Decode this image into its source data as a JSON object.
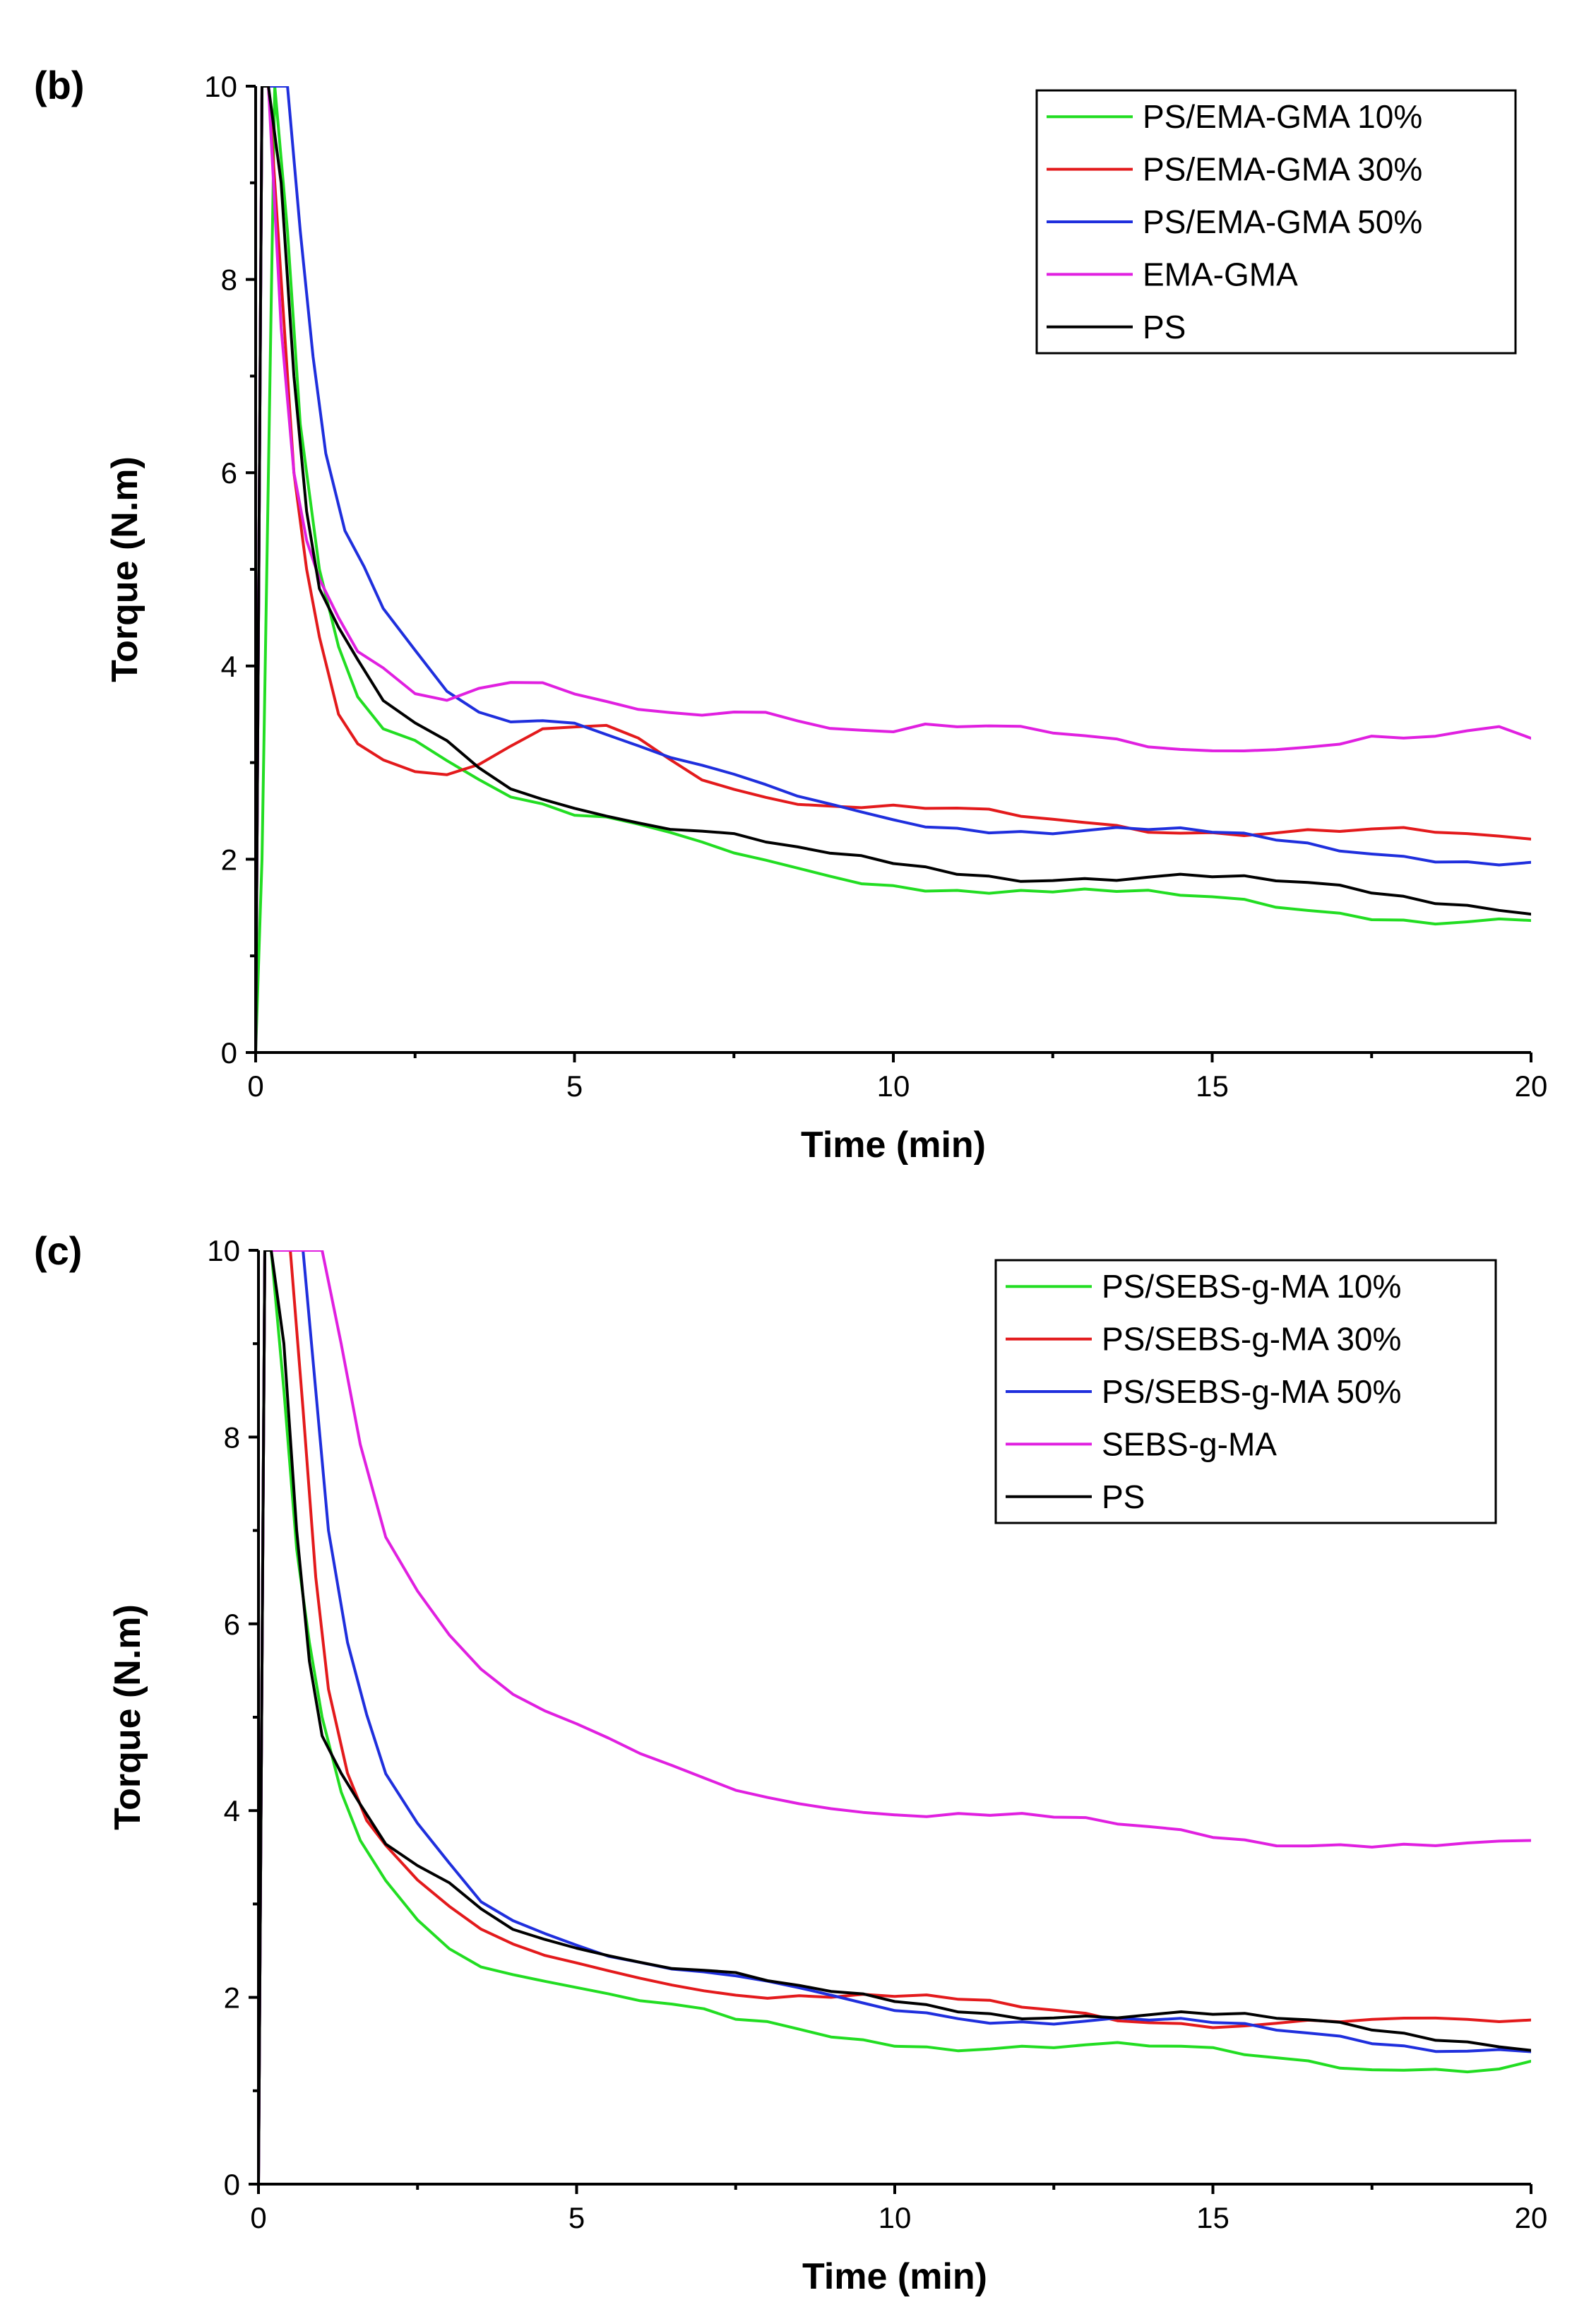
{
  "chart_data": [
    {
      "panel_label": "(b)",
      "type": "line",
      "xlabel": "Time (min)",
      "ylabel": "Torque (N.m)",
      "xlim": [
        0,
        20
      ],
      "ylim": [
        0,
        10
      ],
      "xticks": [
        "0",
        "5",
        "10",
        "15",
        "20"
      ],
      "yticks": [
        "0",
        "2",
        "4",
        "6",
        "8",
        "10"
      ],
      "legend_position": "top-right",
      "series": [
        {
          "name": "PS/EMA-GMA 10%",
          "color": "#22dd22",
          "x": [
            0,
            0.1,
            0.2,
            0.3,
            0.5,
            0.7,
            1,
            1.3,
            1.6,
            2,
            2.5,
            3,
            3.5,
            4,
            4.5,
            5,
            5.5,
            6,
            6.5,
            7,
            7.5,
            8,
            8.5,
            9,
            9.5,
            10,
            10.5,
            11,
            11.5,
            12,
            12.5,
            13,
            13.5,
            14,
            14.5,
            15,
            15.5,
            16,
            16.5,
            17,
            17.5,
            18,
            18.5,
            19,
            19.5,
            20
          ],
          "y": [
            0,
            2,
            6,
            10,
            8.5,
            6.5,
            5,
            4.2,
            3.7,
            3.4,
            3.3,
            3.1,
            2.9,
            2.7,
            2.6,
            2.45,
            2.4,
            2.3,
            2.2,
            2.1,
            2,
            1.95,
            1.9,
            1.85,
            1.8,
            1.8,
            1.75,
            1.75,
            1.7,
            1.7,
            1.65,
            1.65,
            1.6,
            1.6,
            1.55,
            1.55,
            1.55,
            1.5,
            1.5,
            1.5,
            1.45,
            1.45,
            1.4,
            1.4,
            1.4,
            1.35
          ]
        },
        {
          "name": "PS/EMA-GMA 30%",
          "color": "#e31a1c",
          "x": [
            0,
            0.1,
            0.2,
            0.4,
            0.6,
            0.8,
            1,
            1.3,
            1.6,
            2,
            2.5,
            3,
            3.5,
            4,
            4.5,
            5,
            5.5,
            6,
            6.5,
            7,
            7.5,
            8,
            8.5,
            9,
            9.5,
            10,
            10.5,
            11,
            11.5,
            12,
            12.5,
            13,
            13.5,
            14,
            14.5,
            15,
            15.5,
            16,
            16.5,
            17,
            17.5,
            18,
            18.5,
            19,
            19.5,
            20
          ],
          "y": [
            0,
            10,
            10,
            8,
            6,
            5,
            4.3,
            3.5,
            3.2,
            3,
            2.85,
            2.8,
            2.9,
            3.1,
            3.3,
            3.35,
            3.4,
            3.3,
            3.1,
            2.9,
            2.8,
            2.7,
            2.6,
            2.55,
            2.5,
            2.5,
            2.45,
            2.45,
            2.45,
            2.4,
            2.4,
            2.4,
            2.4,
            2.35,
            2.35,
            2.35,
            2.3,
            2.3,
            2.3,
            2.25,
            2.25,
            2.25,
            2.2,
            2.2,
            2.2,
            2.2
          ]
        },
        {
          "name": "PS/EMA-GMA 50%",
          "color": "#1f2fdd",
          "x": [
            0,
            0.1,
            0.3,
            0.5,
            0.7,
            0.9,
            1.1,
            1.4,
            1.7,
            2,
            2.5,
            3,
            3.5,
            4,
            4.5,
            5,
            5.5,
            6,
            6.5,
            7,
            7.5,
            8,
            8.5,
            9,
            9.5,
            10,
            10.5,
            11,
            11.5,
            12,
            12.5,
            13,
            13.5,
            14,
            14.5,
            15,
            15.5,
            16,
            16.5,
            17,
            17.5,
            18,
            18.5,
            19,
            19.5,
            20
          ],
          "y": [
            0,
            10,
            10,
            10,
            8.5,
            7.2,
            6.2,
            5.4,
            5,
            4.6,
            4.2,
            3.8,
            3.6,
            3.5,
            3.5,
            3.45,
            3.3,
            3.15,
            3,
            2.9,
            2.8,
            2.7,
            2.6,
            2.55,
            2.5,
            2.45,
            2.4,
            2.4,
            2.35,
            2.35,
            2.3,
            2.3,
            2.3,
            2.25,
            2.25,
            2.2,
            2.2,
            2.15,
            2.15,
            2.1,
            2.1,
            2.1,
            2.05,
            2.05,
            2,
            2
          ]
        },
        {
          "name": "EMA-GMA",
          "color": "#e020e0",
          "x": [
            0,
            0.1,
            0.2,
            0.4,
            0.6,
            0.8,
            1,
            1.3,
            1.6,
            2,
            2.5,
            3,
            3.5,
            4,
            4.5,
            5,
            5.5,
            6,
            6.5,
            7,
            7.5,
            8,
            8.5,
            9,
            9.5,
            10,
            10.5,
            11,
            11.5,
            12,
            12.5,
            13,
            13.5,
            14,
            14.5,
            15,
            15.5,
            16,
            16.5,
            17,
            17.5,
            18,
            18.5,
            19,
            19.5,
            20
          ],
          "y": [
            0,
            10,
            10,
            7.5,
            6,
            5.3,
            4.9,
            4.5,
            4.2,
            4,
            3.7,
            3.6,
            3.7,
            3.75,
            3.75,
            3.65,
            3.6,
            3.55,
            3.55,
            3.55,
            3.6,
            3.6,
            3.5,
            3.4,
            3.35,
            3.3,
            3.35,
            3.3,
            3.3,
            3.3,
            3.25,
            3.25,
            3.25,
            3.2,
            3.2,
            3.2,
            3.2,
            3.2,
            3.2,
            3.2,
            3.25,
            3.2,
            3.2,
            3.25,
            3.3,
            3.2
          ]
        },
        {
          "name": "PS",
          "color": "#000000",
          "x": [
            0,
            0.1,
            0.2,
            0.4,
            0.6,
            0.8,
            1,
            1.3,
            1.6,
            2,
            2.5,
            3,
            3.5,
            4,
            4.5,
            5,
            5.5,
            6,
            6.5,
            7,
            7.5,
            8,
            8.5,
            9,
            9.5,
            10,
            10.5,
            11,
            11.5,
            12,
            12.5,
            13,
            13.5,
            14,
            14.5,
            15,
            15.5,
            16,
            16.5,
            17,
            17.5,
            18,
            18.5,
            19,
            19.5,
            20
          ],
          "y": [
            0,
            10,
            10,
            9,
            7,
            5.6,
            4.8,
            4.4,
            4,
            3.6,
            3.4,
            3.25,
            3,
            2.8,
            2.7,
            2.6,
            2.5,
            2.4,
            2.3,
            2.25,
            2.2,
            2.1,
            2.05,
            2,
            2,
            1.95,
            1.95,
            1.9,
            1.9,
            1.85,
            1.85,
            1.85,
            1.8,
            1.8,
            1.8,
            1.75,
            1.75,
            1.7,
            1.7,
            1.7,
            1.65,
            1.65,
            1.6,
            1.6,
            1.55,
            1.5
          ]
        }
      ]
    },
    {
      "panel_label": "(c)",
      "type": "line",
      "xlabel": "Time (min)",
      "ylabel": "Torque (N.m)",
      "xlim": [
        0,
        20
      ],
      "ylim": [
        0,
        10
      ],
      "xticks": [
        "0",
        "5",
        "10",
        "15",
        "20"
      ],
      "yticks": [
        "0",
        "2",
        "4",
        "6",
        "8",
        "10"
      ],
      "legend_position": "top-right",
      "series": [
        {
          "name": "PS/SEBS-g-MA 10%",
          "color": "#22dd22",
          "x": [
            0,
            0.1,
            0.2,
            0.4,
            0.6,
            0.8,
            1,
            1.3,
            1.6,
            2,
            2.5,
            3,
            3.5,
            4,
            4.5,
            5,
            5.5,
            6,
            6.5,
            7,
            7.5,
            8,
            8.5,
            9,
            9.5,
            10,
            10.5,
            11,
            11.5,
            12,
            12.5,
            13,
            13.5,
            14,
            14.5,
            15,
            15.5,
            16,
            16.5,
            17,
            17.5,
            18,
            18.5,
            19,
            19.5,
            20
          ],
          "y": [
            0,
            10,
            10,
            8.5,
            6.8,
            5.8,
            5,
            4.2,
            3.7,
            3.3,
            2.9,
            2.6,
            2.4,
            2.3,
            2.2,
            2.1,
            2,
            1.9,
            1.85,
            1.8,
            1.7,
            1.7,
            1.65,
            1.6,
            1.6,
            1.55,
            1.55,
            1.5,
            1.5,
            1.5,
            1.45,
            1.45,
            1.45,
            1.4,
            1.4,
            1.4,
            1.35,
            1.35,
            1.35,
            1.3,
            1.3,
            1.3,
            1.3,
            1.25,
            1.25,
            1.3
          ]
        },
        {
          "name": "PS/SEBS-g-MA 30%",
          "color": "#e31a1c",
          "x": [
            0,
            0.1,
            0.3,
            0.5,
            0.7,
            0.9,
            1.1,
            1.4,
            1.7,
            2,
            2.5,
            3,
            3.5,
            4,
            4.5,
            5,
            5.5,
            6,
            6.5,
            7,
            7.5,
            8,
            8.5,
            9,
            9.5,
            10,
            10.5,
            11,
            11.5,
            12,
            12.5,
            13,
            13.5,
            14,
            14.5,
            15,
            15.5,
            16,
            16.5,
            17,
            17.5,
            18,
            18.5,
            19,
            19.5,
            20
          ],
          "y": [
            0,
            10,
            10,
            10,
            8.3,
            6.5,
            5.3,
            4.4,
            3.9,
            3.6,
            3.2,
            2.9,
            2.65,
            2.5,
            2.4,
            2.35,
            2.3,
            2.25,
            2.2,
            2.15,
            2.1,
            2.05,
            2.05,
            2,
            2,
            1.95,
            1.95,
            1.9,
            1.9,
            1.85,
            1.85,
            1.85,
            1.8,
            1.8,
            1.8,
            1.75,
            1.75,
            1.75,
            1.75,
            1.7,
            1.7,
            1.7,
            1.7,
            1.7,
            1.7,
            1.75
          ]
        },
        {
          "name": "PS/SEBS-g-MA 50%",
          "color": "#1f2fdd",
          "x": [
            0,
            0.1,
            0.3,
            0.5,
            0.7,
            0.9,
            1.1,
            1.4,
            1.7,
            2,
            2.5,
            3,
            3.5,
            4,
            4.5,
            5,
            5.5,
            6,
            6.5,
            7,
            7.5,
            8,
            8.5,
            9,
            9.5,
            10,
            10.5,
            11,
            11.5,
            12,
            12.5,
            13,
            13.5,
            14,
            14.5,
            15,
            15.5,
            16,
            16.5,
            17,
            17.5,
            18,
            18.5,
            19,
            19.5,
            20
          ],
          "y": [
            0,
            10,
            10,
            10,
            10,
            8.5,
            7,
            5.8,
            5,
            4.4,
            3.9,
            3.5,
            3.1,
            2.9,
            2.75,
            2.6,
            2.45,
            2.35,
            2.25,
            2.2,
            2.15,
            2.1,
            2.05,
            2,
            1.95,
            1.9,
            1.9,
            1.85,
            1.8,
            1.8,
            1.75,
            1.75,
            1.75,
            1.7,
            1.7,
            1.65,
            1.65,
            1.6,
            1.6,
            1.6,
            1.55,
            1.55,
            1.5,
            1.5,
            1.5,
            1.45
          ]
        },
        {
          "name": "SEBS-g-MA",
          "color": "#e020e0",
          "x": [
            0,
            0.1,
            0.2,
            0.5,
            1,
            1.3,
            1.6,
            2,
            2.5,
            3,
            3.5,
            4,
            4.5,
            5,
            5.5,
            6,
            6.5,
            7,
            7.5,
            8,
            8.5,
            9,
            9.5,
            10,
            10.5,
            11,
            11.5,
            12,
            12.5,
            13,
            13.5,
            14,
            14.5,
            15,
            15.5,
            16,
            16.5,
            17,
            17.5,
            18,
            18.5,
            19,
            19.5,
            20
          ],
          "y": [
            0,
            10,
            10,
            10,
            10,
            9,
            8,
            7,
            6.4,
            5.9,
            5.5,
            5.2,
            5,
            4.85,
            4.7,
            4.55,
            4.45,
            4.35,
            4.25,
            4.2,
            4.15,
            4.1,
            4.05,
            4,
            3.95,
            3.95,
            3.9,
            3.9,
            3.85,
            3.85,
            3.8,
            3.8,
            3.8,
            3.75,
            3.75,
            3.7,
            3.7,
            3.7,
            3.65,
            3.65,
            3.6,
            3.6,
            3.6,
            3.6
          ]
        },
        {
          "name": "PS",
          "color": "#000000",
          "x": [
            0,
            0.1,
            0.2,
            0.4,
            0.6,
            0.8,
            1,
            1.3,
            1.6,
            2,
            2.5,
            3,
            3.5,
            4,
            4.5,
            5,
            5.5,
            6,
            6.5,
            7,
            7.5,
            8,
            8.5,
            9,
            9.5,
            10,
            10.5,
            11,
            11.5,
            12,
            12.5,
            13,
            13.5,
            14,
            14.5,
            15,
            15.5,
            16,
            16.5,
            17,
            17.5,
            18,
            18.5,
            19,
            19.5,
            20
          ],
          "y": [
            0,
            10,
            10,
            9,
            7,
            5.6,
            4.8,
            4.4,
            4,
            3.6,
            3.4,
            3.25,
            3,
            2.8,
            2.7,
            2.6,
            2.5,
            2.4,
            2.3,
            2.25,
            2.2,
            2.1,
            2.05,
            2,
            2,
            1.95,
            1.95,
            1.9,
            1.9,
            1.85,
            1.85,
            1.85,
            1.8,
            1.8,
            1.8,
            1.75,
            1.75,
            1.7,
            1.7,
            1.7,
            1.65,
            1.65,
            1.6,
            1.6,
            1.55,
            1.5
          ]
        }
      ]
    }
  ]
}
